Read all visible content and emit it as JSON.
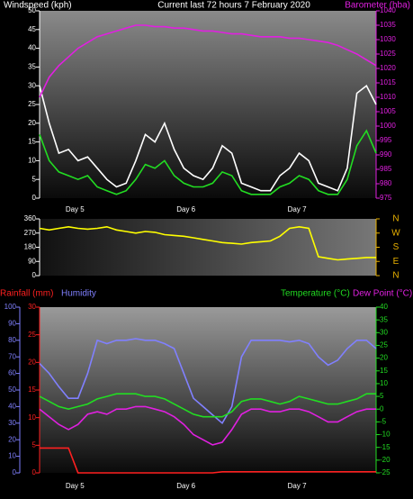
{
  "chart_data": [
    {
      "type": "line",
      "title": "Current last 72 hours 7 February 2020",
      "ylabel": "Windspeed (kph)",
      "y2label": "Barometer (hba)",
      "x_labels": [
        "Day 5",
        "Day 6",
        "Day 7"
      ],
      "ylim": [
        0,
        50
      ],
      "yticks": [
        0,
        5,
        10,
        15,
        20,
        25,
        30,
        35,
        40,
        45,
        50
      ],
      "y2lim": [
        975,
        1040
      ],
      "y2ticks": [
        975,
        980,
        985,
        990,
        995,
        1000,
        1005,
        1010,
        1015,
        1020,
        1025,
        1030,
        1035,
        1040
      ],
      "series": [
        {
          "color": "#ffffff",
          "values": [
            30,
            20,
            12,
            13,
            10,
            11,
            8,
            5,
            3,
            4,
            10,
            17,
            15,
            20,
            13,
            8,
            6,
            5,
            8,
            14,
            12,
            4,
            3,
            2,
            2,
            6,
            8,
            12,
            10,
            4,
            3,
            2,
            8,
            28,
            30,
            25
          ]
        },
        {
          "color": "#22dd22",
          "values": [
            17,
            10,
            7,
            6,
            5,
            6,
            3,
            2,
            1,
            2,
            5,
            9,
            8,
            10,
            6,
            4,
            3,
            3,
            4,
            7,
            6,
            2,
            1,
            1,
            1,
            3,
            4,
            6,
            5,
            2,
            1,
            1,
            5,
            14,
            18,
            12
          ]
        },
        {
          "color": "#e020e0",
          "axis": "y2",
          "values": [
            1010,
            1017,
            1021,
            1024,
            1027,
            1029,
            1031,
            1032,
            1033,
            1034,
            1035,
            1035,
            1034.5,
            1034.5,
            1034,
            1034,
            1033.5,
            1033,
            1033,
            1032.5,
            1032,
            1032,
            1031.5,
            1031,
            1031,
            1031,
            1030.5,
            1030.5,
            1030,
            1029.5,
            1029,
            1028,
            1026.5,
            1025,
            1023,
            1021
          ]
        }
      ]
    },
    {
      "type": "line",
      "ylim": [
        0,
        360
      ],
      "yticks": [
        0,
        90,
        180,
        270,
        360
      ],
      "y2lim": [
        0,
        360
      ],
      "y2ticks": [
        {
          "value": 360,
          "label": "N"
        },
        {
          "value": 270,
          "label": "W"
        },
        {
          "value": 180,
          "label": "S"
        },
        {
          "value": 90,
          "label": "E"
        },
        {
          "value": 0,
          "label": "N"
        }
      ],
      "series": [
        {
          "color": "#ffff00",
          "values": [
            300,
            290,
            300,
            310,
            300,
            295,
            300,
            310,
            290,
            280,
            270,
            280,
            275,
            260,
            255,
            250,
            240,
            230,
            220,
            210,
            205,
            200,
            210,
            215,
            220,
            250,
            300,
            310,
            300,
            120,
            110,
            100,
            105,
            110,
            115,
            115
          ]
        }
      ]
    },
    {
      "type": "line",
      "x_labels": [
        "Day 5",
        "Day 6",
        "Day 7"
      ],
      "ylim": [
        0,
        100
      ],
      "yticks": [
        0,
        10,
        20,
        30,
        40,
        50,
        60,
        70,
        80,
        90,
        100
      ],
      "y2lim": [
        -25,
        40
      ],
      "y2ticks": [
        -25,
        -20,
        -15,
        -10,
        -5,
        0,
        5,
        10,
        15,
        20,
        25,
        30,
        35,
        40
      ],
      "y3lim": [
        0,
        30
      ],
      "y3ticks": [
        0,
        5,
        10,
        15,
        20,
        25,
        30
      ],
      "series": [
        {
          "name": "Rainfall (mm)",
          "color": "#ff2020",
          "axis": "y3",
          "values": [
            4.5,
            4.5,
            4.5,
            4.5,
            0,
            0,
            0,
            0,
            0,
            0,
            0,
            0,
            0,
            0,
            0,
            0,
            0,
            0,
            0,
            0.2,
            0.2,
            0.2,
            0.2,
            0.2,
            0.2,
            0.2,
            0.2,
            0.2,
            0.2,
            0.2,
            0.2,
            0.2,
            0.2,
            0.2,
            0.2,
            0.2
          ]
        },
        {
          "name": "Humidity",
          "color": "#8080ff",
          "values": [
            66,
            60,
            52,
            45,
            45,
            60,
            80,
            78,
            80,
            80,
            81,
            80,
            80,
            78,
            75,
            60,
            45,
            40,
            35,
            30,
            40,
            70,
            80,
            80,
            80,
            80,
            79,
            80,
            78,
            70,
            65,
            68,
            75,
            80,
            80,
            75
          ]
        },
        {
          "name": "Temperature (°C)",
          "color": "#22dd22",
          "axis": "y2",
          "values": [
            5,
            3,
            1,
            0,
            1,
            2,
            4,
            5,
            6,
            6,
            6,
            5,
            5,
            4,
            2,
            0,
            -2,
            -3,
            -3,
            -3,
            -1,
            3,
            4,
            4,
            3,
            2,
            3,
            5,
            4,
            3,
            2,
            2,
            3,
            4,
            6,
            6
          ]
        },
        {
          "name": "Dew Point (°C)",
          "color": "#e020e0",
          "axis": "y2",
          "values": [
            0,
            -3,
            -6,
            -8,
            -6,
            -2,
            -1,
            -2,
            0,
            0,
            1,
            1,
            0,
            -1,
            -3,
            -6,
            -10,
            -12,
            -14,
            -13,
            -8,
            -2,
            0,
            0,
            -1,
            -1,
            0,
            0,
            -1,
            -3,
            -5,
            -5,
            -3,
            -1,
            0,
            0
          ]
        }
      ]
    }
  ]
}
